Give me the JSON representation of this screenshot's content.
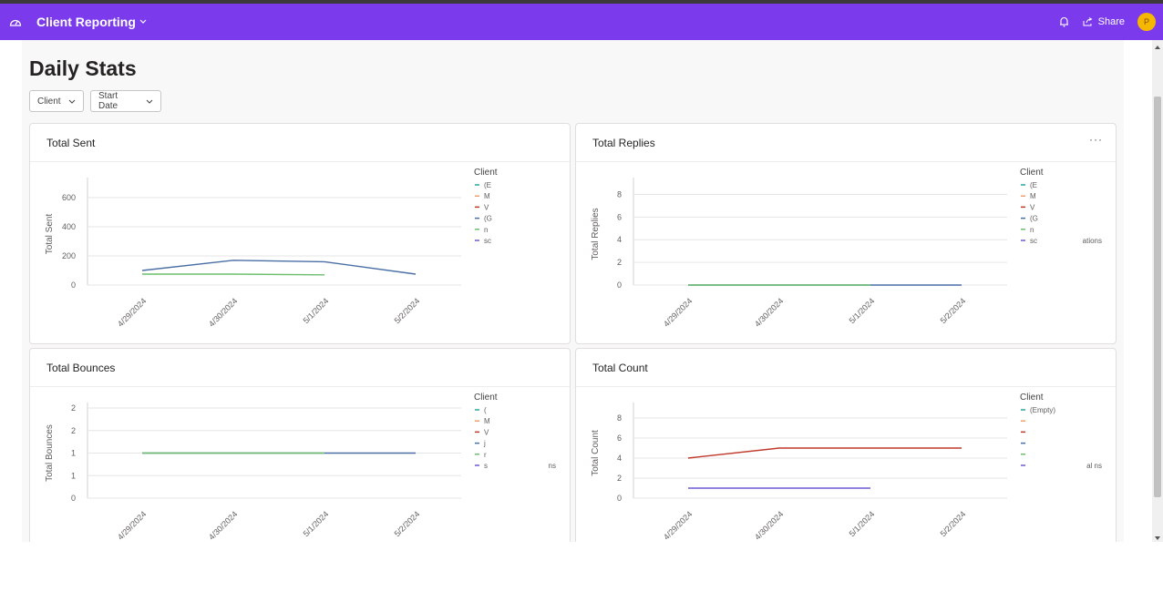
{
  "app": {
    "title": "Client Reporting",
    "share_label": "Share",
    "avatar_initial": "P",
    "accent": "#7c3aed"
  },
  "page": {
    "title": "Daily Stats"
  },
  "filters": [
    {
      "label": "Client"
    },
    {
      "label": "Start Date"
    }
  ],
  "legend_title": "Client",
  "chart_data": [
    {
      "type": "line",
      "title": "Total Sent",
      "ylabel": "Total Sent",
      "xlabel": "",
      "x": [
        "4/29/2024",
        "4/30/2024",
        "5/1/2024",
        "5/2/2024"
      ],
      "ylim": [
        0,
        700
      ],
      "yticks": [
        0,
        200,
        400,
        600
      ],
      "legend_items": [
        "(E",
        "M",
        "V",
        "(G",
        "n",
        "sc"
      ],
      "series": [
        {
          "color": "#4a6fa5",
          "values": [
            100,
            170,
            160,
            75
          ]
        },
        {
          "color": "#6dbf6d",
          "values": [
            75,
            75,
            70,
            null
          ]
        }
      ]
    },
    {
      "type": "line",
      "title": "Total Replies",
      "ylabel": "Total Replies",
      "xlabel": "",
      "x": [
        "4/29/2024",
        "4/30/2024",
        "5/1/2024",
        "5/2/2024"
      ],
      "ylim": [
        0,
        9
      ],
      "yticks": [
        0,
        2,
        4,
        6,
        8
      ],
      "legend_items": [
        "(E",
        "M",
        "V",
        "(G",
        "n",
        "sc"
      ],
      "legend_suffix": "ations",
      "series": [
        {
          "color": "#4a6fa5",
          "values": [
            0,
            0,
            0,
            0
          ]
        },
        {
          "color": "#6dbf6d",
          "values": [
            0,
            0,
            0,
            null
          ]
        }
      ]
    },
    {
      "type": "line",
      "title": "Total Bounces",
      "ylabel": "Total Bounces",
      "xlabel": "",
      "x": [
        "4/29/2024",
        "4/30/2024",
        "5/1/2024",
        "5/2/2024"
      ],
      "ylim": [
        0,
        2
      ],
      "yticks": [
        0,
        0.5,
        1,
        1.5,
        2
      ],
      "ytick_labels": [
        "0",
        "1",
        "1",
        "2",
        "2"
      ],
      "legend_items": [
        "(",
        "M",
        "V",
        "j",
        "r",
        "s"
      ],
      "legend_suffix": "ns",
      "series": [
        {
          "color": "#4a6fa5",
          "values": [
            1,
            1,
            1,
            1
          ]
        },
        {
          "color": "#6dbf6d",
          "values": [
            1,
            1,
            1,
            null
          ]
        }
      ]
    },
    {
      "type": "line",
      "title": "Total Count",
      "ylabel": "Total Count",
      "xlabel": "",
      "x": [
        "4/29/2024",
        "4/30/2024",
        "5/1/2024",
        "5/2/2024"
      ],
      "ylim": [
        0,
        9
      ],
      "yticks": [
        0,
        2,
        4,
        6,
        8
      ],
      "legend_items": [
        "(Empty)",
        "",
        "",
        "",
        "",
        ""
      ],
      "legend_suffix": "al ns",
      "series": [
        {
          "color": "#c0392b",
          "values": [
            4,
            5,
            5,
            5
          ]
        },
        {
          "color": "#6b5bd6",
          "values": [
            1,
            1,
            1,
            null
          ]
        }
      ]
    }
  ],
  "legend_colors": [
    "#2aa7a0",
    "#f0a070",
    "#c0392b",
    "#4a6fa5",
    "#6dbf6d",
    "#6b5bd6"
  ]
}
